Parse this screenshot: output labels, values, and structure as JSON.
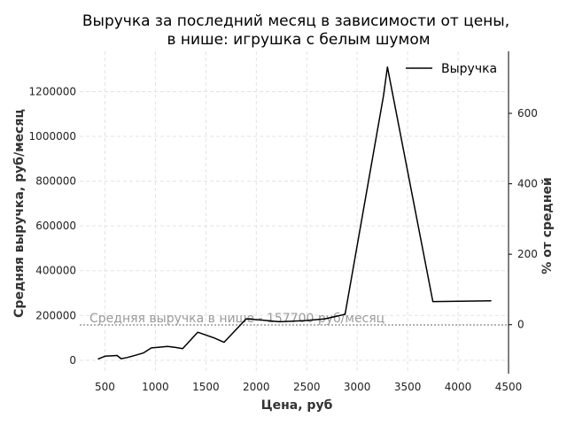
{
  "chart_data": {
    "type": "line",
    "title_line1": "Выручка за последний месяц в зависимости от цены,",
    "title_line2": "в нише: игрушка с белым шумом",
    "xlabel": "Цена, руб",
    "ylabel": "Средняя выручка, руб/месяц",
    "y2label": "% от средней",
    "xlim": [
      250,
      4500
    ],
    "ylim": [
      -60000,
      1380000
    ],
    "y2lim": [
      -139,
      776
    ],
    "xticks": [
      500,
      1000,
      1500,
      2000,
      2500,
      3000,
      3500,
      4000,
      4500
    ],
    "yticks": [
      0,
      200000,
      400000,
      600000,
      800000,
      1000000,
      1200000
    ],
    "y2ticks": [
      0,
      200,
      400,
      600
    ],
    "grid": true,
    "legend_position": "top-right",
    "series": [
      {
        "name": "Выручка",
        "color": "#000000",
        "points": [
          [
            430,
            5000
          ],
          [
            500,
            18000
          ],
          [
            580,
            20000
          ],
          [
            620,
            21000
          ],
          [
            660,
            7000
          ],
          [
            720,
            12000
          ],
          [
            800,
            22000
          ],
          [
            880,
            32000
          ],
          [
            960,
            55000
          ],
          [
            1030,
            58000
          ],
          [
            1120,
            62000
          ],
          [
            1200,
            57000
          ],
          [
            1270,
            52000
          ],
          [
            1420,
            125000
          ],
          [
            1580,
            100000
          ],
          [
            1680,
            80000
          ],
          [
            1900,
            185000
          ],
          [
            2080,
            178000
          ],
          [
            2230,
            172000
          ],
          [
            2480,
            177000
          ],
          [
            2680,
            185000
          ],
          [
            2880,
            205000
          ],
          [
            3260,
            1180000
          ],
          [
            3300,
            1310000
          ],
          [
            3750,
            262000
          ],
          [
            4330,
            265000
          ]
        ]
      }
    ],
    "reference_line": {
      "value": 157700,
      "label": "Средняя выручка в нише - 157700 руб/месяц",
      "color": "#9a9a9a"
    }
  }
}
